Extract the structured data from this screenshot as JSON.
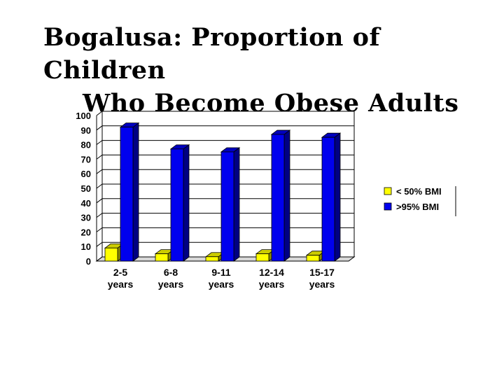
{
  "title": {
    "line1": "Bogalusa: Proportion of Children",
    "line2": "Who Become Obese Adults"
  },
  "chart_data": {
    "type": "bar",
    "title": "Bogalusa: Proportion of Children Who Become Obese Adults",
    "categories": [
      [
        "2-5",
        "years"
      ],
      [
        "6-8",
        "years"
      ],
      [
        "9-11",
        "years"
      ],
      [
        "12-14",
        "years"
      ],
      [
        "15-17",
        "years"
      ]
    ],
    "series": [
      {
        "name": "< 50% BMI",
        "values": [
          9,
          5,
          3,
          5,
          4
        ],
        "color": "#ffff00"
      },
      {
        "name": ">95% BMI",
        "values": [
          92,
          77,
          75,
          87,
          85
        ],
        "color": "#0000ee"
      }
    ],
    "ylim": [
      0,
      100
    ],
    "yticks": [
      0,
      10,
      20,
      30,
      40,
      50,
      60,
      70,
      80,
      90,
      100
    ],
    "grid": true,
    "legend": "right",
    "bar_style": "3d"
  }
}
